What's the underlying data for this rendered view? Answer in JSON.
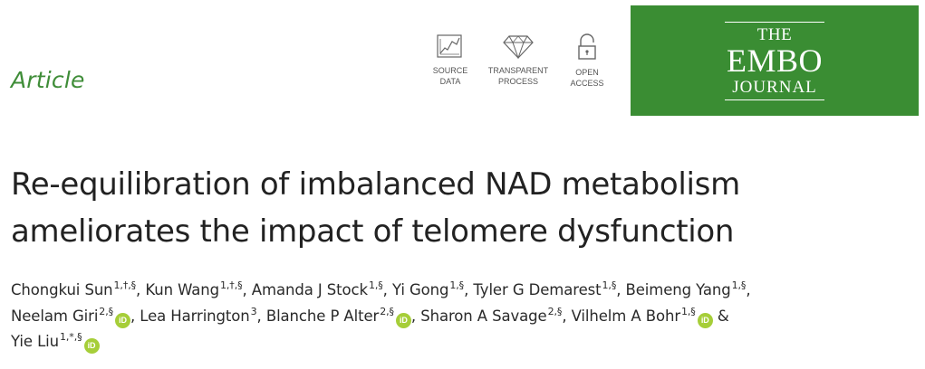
{
  "article_label": "Article",
  "badges": {
    "source_data": "SOURCE\nDATA",
    "transparent_process": "TRANSPARENT\nPROCESS",
    "open_access": "OPEN\nACCESS"
  },
  "journal_logo": {
    "line1": "THE",
    "line2": "EMBO",
    "line3": "JOURNAL",
    "background": "#3a8d33"
  },
  "title": {
    "line1": "Re-equilibration of imbalanced NAD metabolism",
    "line2": "ameliorates the impact of telomere dysfunction"
  },
  "authors": [
    {
      "name": "Chongkui Sun",
      "aff": "1,†,§",
      "sep": ", ",
      "orcid": false
    },
    {
      "name": "Kun Wang",
      "aff": "1,†,§",
      "sep": ", ",
      "orcid": false
    },
    {
      "name": "Amanda J Stock",
      "aff": "1,§",
      "sep": ", ",
      "orcid": false
    },
    {
      "name": "Yi Gong",
      "aff": "1,§",
      "sep": ", ",
      "orcid": false
    },
    {
      "name": "Tyler G Demarest",
      "aff": "1,§",
      "sep": ", ",
      "orcid": false
    },
    {
      "name": "Beimeng Yang",
      "aff": "1,§",
      "sep": ",",
      "orcid": false
    },
    {
      "name": "Neelam Giri",
      "aff": "2,§",
      "sep": ", ",
      "orcid": true
    },
    {
      "name": "Lea Harrington",
      "aff": "3",
      "sep": ", ",
      "orcid": false
    },
    {
      "name": "Blanche P Alter",
      "aff": "2,§",
      "sep": ", ",
      "orcid": true
    },
    {
      "name": "Sharon A Savage",
      "aff": "2,§",
      "sep": ", ",
      "orcid": false
    },
    {
      "name": "Vilhelm A Bohr",
      "aff": "1,§",
      "sep": " & ",
      "orcid": true
    },
    {
      "name": "Yie Liu",
      "aff": "1,*,§",
      "sep": "",
      "orcid": true
    }
  ],
  "orcid_mark": "iD",
  "colors": {
    "accent_green": "#3f8d38",
    "orcid_green": "#a6ce39"
  }
}
